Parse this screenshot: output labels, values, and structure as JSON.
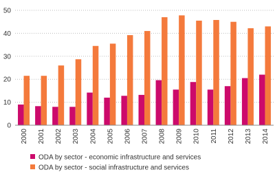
{
  "chart_data": {
    "type": "bar",
    "categories": [
      "2000",
      "2001",
      "2002",
      "2003",
      "2004",
      "2005",
      "2006",
      "2007",
      "2008",
      "2009",
      "2010",
      "2011",
      "2012",
      "2013",
      "2014"
    ],
    "series": [
      {
        "name": "ODA by sector - economic infrastructure and services",
        "color": "#cc0a6b",
        "values": [
          9,
          8.3,
          8,
          8,
          14.2,
          12,
          12.8,
          13.2,
          19.6,
          15.5,
          18.8,
          15.5,
          17,
          20.5,
          22
        ]
      },
      {
        "name": "ODA by sector - social infrastructure and services",
        "color": "#f47a3c",
        "values": [
          21.5,
          21.5,
          26,
          28.7,
          34.5,
          35.5,
          39.2,
          41,
          47,
          47.8,
          45.5,
          45.8,
          45,
          42.2,
          43
        ]
      }
    ],
    "ylim": [
      0,
      50
    ],
    "yticks": [
      0,
      10,
      20,
      30,
      40,
      50
    ],
    "grid": true
  }
}
